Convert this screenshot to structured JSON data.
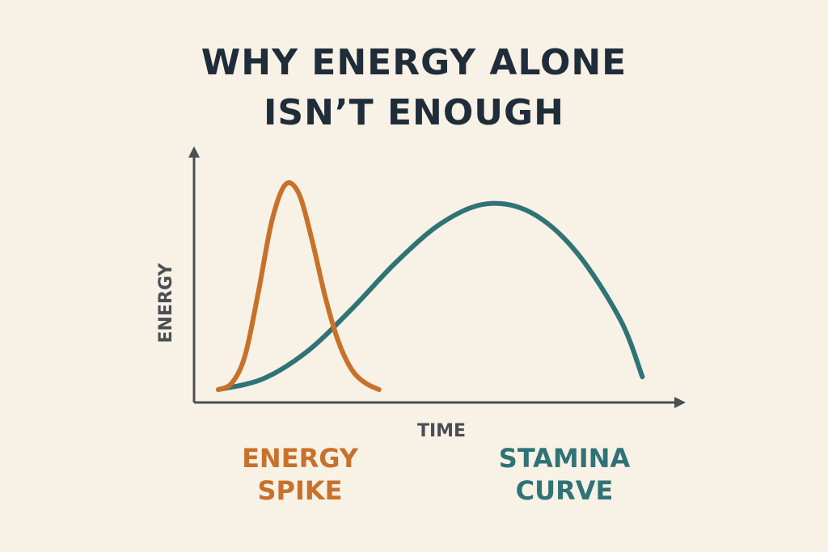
{
  "title": {
    "line1": "WHY ENERGY ALONE",
    "line2": "ISN’T ENOUGH"
  },
  "chart_data": {
    "type": "line",
    "title": "WHY ENERGY ALONE ISN’T ENOUGH",
    "xlabel": "TIME",
    "ylabel": "ENERGY",
    "xlim": [
      0,
      10
    ],
    "ylim": [
      0,
      10
    ],
    "grid": false,
    "axis_ticks": false,
    "series": [
      {
        "name": "ENERGY SPIKE",
        "color": "#c8712b",
        "x": [
          0,
          0.3,
          0.6,
          0.9,
          1.2,
          1.5,
          1.8,
          2.1,
          2.4,
          2.7,
          3.0,
          3.3,
          3.6
        ],
        "y": [
          0.0,
          0.3,
          1.6,
          4.6,
          7.9,
          9.6,
          9.2,
          7.0,
          4.3,
          2.2,
          0.9,
          0.3,
          0.0
        ]
      },
      {
        "name": "STAMINA CURVE",
        "color": "#2f7377",
        "x": [
          0,
          1,
          2,
          3,
          4,
          5,
          6,
          7,
          8,
          9,
          9.5
        ],
        "y": [
          0.0,
          0.5,
          1.8,
          3.8,
          6.0,
          7.8,
          8.7,
          8.3,
          6.5,
          3.3,
          0.6
        ]
      }
    ]
  },
  "legend": {
    "spike_line1": "ENERGY",
    "spike_line2": "SPIKE",
    "stamina_line1": "STAMINA",
    "stamina_line2": "CURVE"
  }
}
